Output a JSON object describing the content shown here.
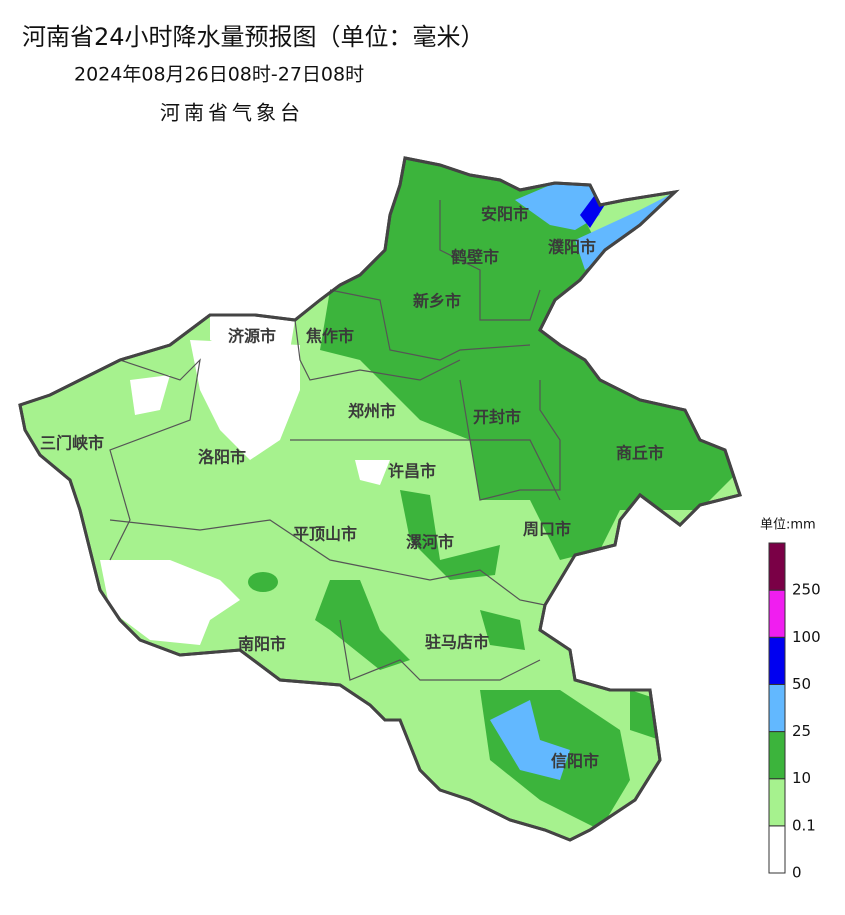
{
  "title": "河南省24小时降水量预报图（单位：毫米）",
  "subtitle": "2024年08月26日08时-27日08时",
  "issuer": "河南省气象台",
  "cities": [
    "安阳市",
    "濮阳市",
    "鹤壁市",
    "新乡市",
    "济源市",
    "焦作市",
    "郑州市",
    "开封市",
    "三门峡市",
    "洛阳市",
    "商丘市",
    "许昌市",
    "平顶山市",
    "漯河市",
    "周口市",
    "南阳市",
    "驻马店市",
    "信阳市"
  ],
  "legend": {
    "title": "单位:mm",
    "levels": [
      0,
      0.1,
      10,
      25,
      50,
      100,
      250
    ],
    "colors": [
      "#ffffff",
      "#a6f28e",
      "#3cb43c",
      "#62b8ff",
      "#0000f0",
      "#f01ef0",
      "#7a0046"
    ]
  }
}
